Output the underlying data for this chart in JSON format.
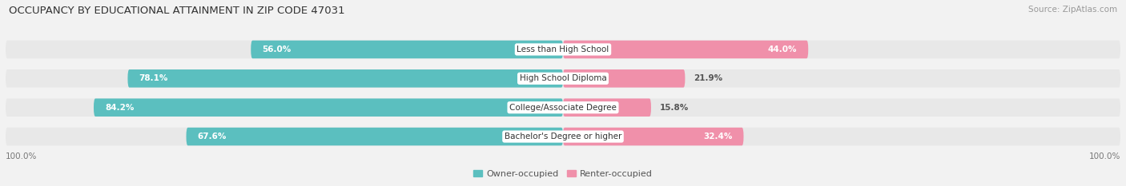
{
  "title": "OCCUPANCY BY EDUCATIONAL ATTAINMENT IN ZIP CODE 47031",
  "source": "Source: ZipAtlas.com",
  "categories": [
    "Less than High School",
    "High School Diploma",
    "College/Associate Degree",
    "Bachelor's Degree or higher"
  ],
  "owner_values": [
    56.0,
    78.1,
    84.2,
    67.6
  ],
  "renter_values": [
    44.0,
    21.9,
    15.8,
    32.4
  ],
  "owner_color": "#5BBFBF",
  "renter_color": "#F090AA",
  "owner_label": "Owner-occupied",
  "renter_label": "Renter-occupied",
  "bg_color": "#f2f2f2",
  "row_bg_color": "#e8e8e8",
  "title_fontsize": 9.5,
  "source_fontsize": 7.5,
  "label_fontsize": 7.5,
  "bar_label_fontsize": 7.5,
  "legend_fontsize": 8,
  "axis_label_fontsize": 7.5,
  "bar_height": 0.62,
  "xlim_left": -100,
  "xlim_right": 100
}
